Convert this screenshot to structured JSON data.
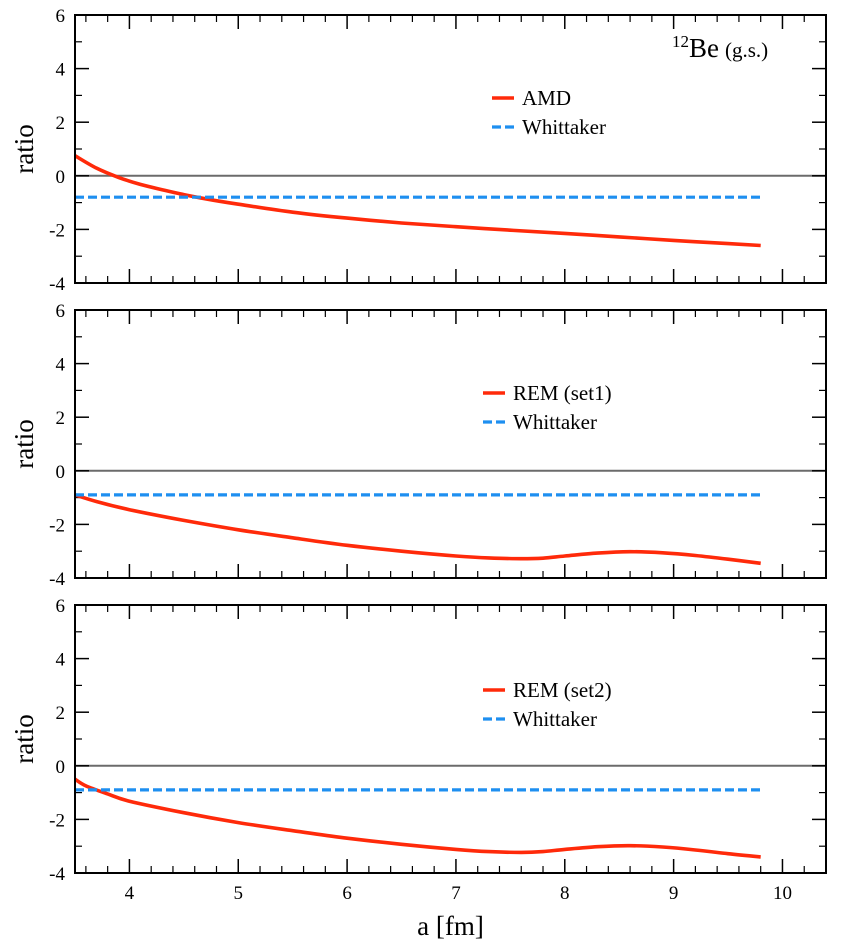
{
  "chart_data": [
    {
      "type": "line",
      "ylabel": "ratio",
      "xlim": [
        3.5,
        10.4
      ],
      "ylim": [
        -4,
        6
      ],
      "xticks": [
        4,
        5,
        6,
        7,
        8,
        9,
        10
      ],
      "yticks": [
        -4,
        -2,
        0,
        2,
        4,
        6
      ],
      "ytick_labels": [
        "-4",
        "-2",
        "0",
        "2",
        "4",
        "6"
      ],
      "show_xtick_labels": false,
      "annotation": {
        "mass_number": "12",
        "nucleus": "Be",
        "state": "(g.s.)"
      },
      "series": [
        {
          "name": "AMD",
          "color": "#ff2a0a",
          "style": "solid",
          "x": [
            3.5,
            3.7,
            3.9,
            4.1,
            4.3,
            4.5,
            4.7,
            5.0,
            5.5,
            6.0,
            6.5,
            7.0,
            7.5,
            8.0,
            8.5,
            9.0,
            9.5,
            9.8
          ],
          "y": [
            0.75,
            0.28,
            -0.06,
            -0.32,
            -0.52,
            -0.7,
            -0.86,
            -1.06,
            -1.36,
            -1.58,
            -1.76,
            -1.9,
            -2.03,
            -2.15,
            -2.28,
            -2.41,
            -2.53,
            -2.6
          ]
        },
        {
          "name": "Whittaker",
          "color": "#1e8ff0",
          "style": "dashed",
          "x": [
            3.5,
            9.8
          ],
          "y": [
            -0.8,
            -0.8
          ]
        }
      ]
    },
    {
      "type": "line",
      "ylabel": "ratio",
      "xlim": [
        3.5,
        10.4
      ],
      "ylim": [
        -4,
        6
      ],
      "xticks": [
        4,
        5,
        6,
        7,
        8,
        9,
        10
      ],
      "yticks": [
        -4,
        -2,
        0,
        2,
        4,
        6
      ],
      "ytick_labels": [
        "-4",
        "-2",
        "0",
        "2",
        "4",
        "6"
      ],
      "show_xtick_labels": false,
      "series": [
        {
          "name": "REM (set1)",
          "color": "#ff2a0a",
          "style": "solid",
          "x": [
            3.5,
            3.7,
            4.0,
            4.5,
            5.0,
            5.5,
            6.0,
            6.5,
            7.0,
            7.3,
            7.6,
            7.8,
            8.0,
            8.3,
            8.6,
            8.9,
            9.2,
            9.5,
            9.8
          ],
          "y": [
            -0.9,
            -1.15,
            -1.45,
            -1.85,
            -2.2,
            -2.5,
            -2.78,
            -3.0,
            -3.18,
            -3.25,
            -3.28,
            -3.26,
            -3.18,
            -3.07,
            -3.02,
            -3.06,
            -3.16,
            -3.3,
            -3.45
          ]
        },
        {
          "name": "Whittaker",
          "color": "#1e8ff0",
          "style": "dashed",
          "x": [
            3.5,
            9.8
          ],
          "y": [
            -0.9,
            -0.9
          ]
        }
      ]
    },
    {
      "type": "line",
      "ylabel": "ratio",
      "xlabel": "a [fm]",
      "xlim": [
        3.5,
        10.4
      ],
      "ylim": [
        -4,
        6
      ],
      "xticks": [
        4,
        5,
        6,
        7,
        8,
        9,
        10
      ],
      "yticks": [
        -4,
        -2,
        0,
        2,
        4,
        6
      ],
      "ytick_labels": [
        "-4",
        "-2",
        "0",
        "2",
        "4",
        "6"
      ],
      "show_xtick_labels": true,
      "series": [
        {
          "name": "REM (set2)",
          "color": "#ff2a0a",
          "style": "solid",
          "x": [
            3.5,
            3.6,
            3.8,
            4.0,
            4.5,
            5.0,
            5.5,
            6.0,
            6.5,
            7.0,
            7.3,
            7.6,
            7.8,
            8.0,
            8.3,
            8.6,
            8.9,
            9.2,
            9.5,
            9.8
          ],
          "y": [
            -0.5,
            -0.75,
            -1.05,
            -1.32,
            -1.75,
            -2.12,
            -2.42,
            -2.7,
            -2.93,
            -3.12,
            -3.2,
            -3.23,
            -3.2,
            -3.12,
            -3.02,
            -2.98,
            -3.03,
            -3.14,
            -3.28,
            -3.4
          ]
        },
        {
          "name": "Whittaker",
          "color": "#1e8ff0",
          "style": "dashed",
          "x": [
            3.5,
            9.8
          ],
          "y": [
            -0.9,
            -0.9
          ]
        }
      ]
    }
  ]
}
